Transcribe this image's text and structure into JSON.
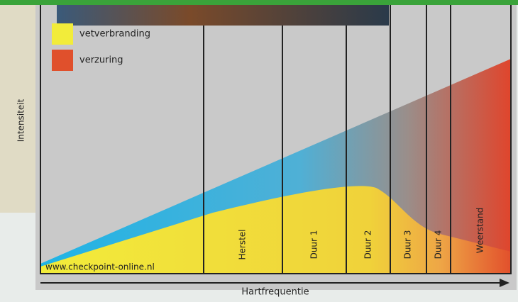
{
  "legend": [
    {
      "label": "vetverbranding"
    },
    {
      "label": "verzuring"
    }
  ],
  "axes": {
    "y_label": "Intensiteit",
    "x_label": "Hartfrequentie"
  },
  "source": "www.checkpoint-online.nl",
  "zones": [
    "Herstel",
    "Duur 1",
    "Duur 2",
    "Duur 3",
    "Duur 4",
    "Weerstand"
  ]
}
